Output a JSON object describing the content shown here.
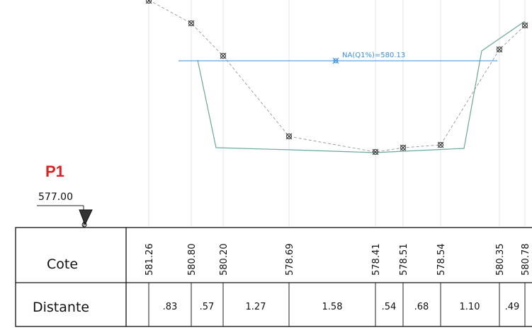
{
  "profile": {
    "name": "P1",
    "reference_level": "577.00",
    "water_level_label": "NA(Q1%)=580.13"
  },
  "table": {
    "row1_label": "Cote",
    "row2_label": "Distante",
    "cotes": [
      "581.26",
      "580.80",
      "580.20",
      "578.69",
      "578.41",
      "578.51",
      "578.54",
      "580.35",
      "580.78"
    ],
    "distances": [
      ".83",
      ".57",
      "1.27",
      "1.58",
      ".54",
      ".68",
      "1.10",
      ".49"
    ]
  },
  "colors": {
    "title": "#e02020",
    "water_line": "#3a8fd8",
    "terrain": "#6aa79c",
    "survey_line": "#555555"
  },
  "icons": [
    "survey-point-icon",
    "level-triangle-icon"
  ]
}
